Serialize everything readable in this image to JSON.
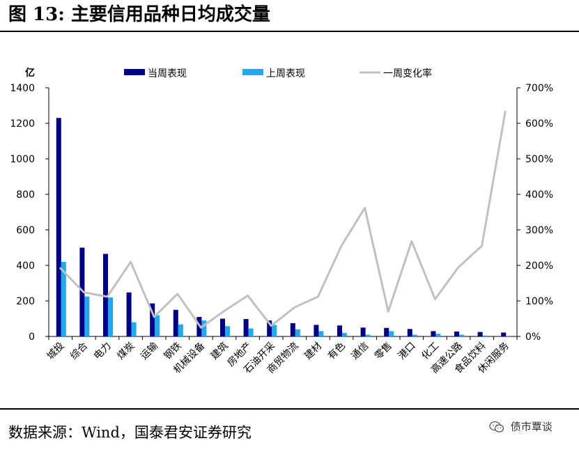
{
  "header": {
    "title": "图 13:  主要信用品种日均成交量"
  },
  "footer": {
    "source": "数据来源：Wind，国泰君安证券研究",
    "watermark": "债市覃谈"
  },
  "chart_data": {
    "type": "bar",
    "title": "",
    "y_unit_label": "亿",
    "ylim": [
      0,
      1400
    ],
    "y_ticks": [
      "0",
      "200",
      "400",
      "600",
      "800",
      "1000",
      "1200",
      "1400"
    ],
    "y2lim": [
      0,
      7
    ],
    "y2_ticks": [
      "0%",
      "100%",
      "200%",
      "300%",
      "400%",
      "500%",
      "600%",
      "700%"
    ],
    "legend_position": "top",
    "grid": false,
    "categories": [
      "城投",
      "综合",
      "电力",
      "煤炭",
      "运输",
      "钢铁",
      "机械设备",
      "建筑",
      "房地产",
      "石油开采",
      "商贸物流",
      "建材",
      "有色",
      "通信",
      "零售",
      "港口",
      "化工",
      "高速公路",
      "食品饮料",
      "休闲服务"
    ],
    "series": [
      {
        "name": "当周表现",
        "type": "bar",
        "axis": "left",
        "color": "#00008b",
        "values": [
          1230,
          500,
          465,
          248,
          186,
          150,
          110,
          100,
          98,
          90,
          75,
          65,
          62,
          50,
          48,
          42,
          30,
          28,
          25,
          22
        ]
      },
      {
        "name": "上周表现",
        "type": "bar",
        "axis": "left",
        "color": "#1eaaf1",
        "values": [
          420,
          225,
          220,
          80,
          120,
          68,
          90,
          58,
          45,
          65,
          40,
          30,
          20,
          10,
          30,
          10,
          15,
          10,
          5,
          3
        ]
      },
      {
        "name": "一周变化率",
        "type": "line",
        "axis": "right",
        "color": "#c0c0c0",
        "values": [
          1.92,
          1.24,
          1.12,
          2.1,
          0.55,
          1.2,
          0.25,
          0.72,
          1.15,
          0.3,
          0.82,
          1.12,
          2.55,
          3.62,
          0.7,
          2.68,
          1.05,
          1.95,
          2.55,
          6.33
        ]
      }
    ]
  }
}
